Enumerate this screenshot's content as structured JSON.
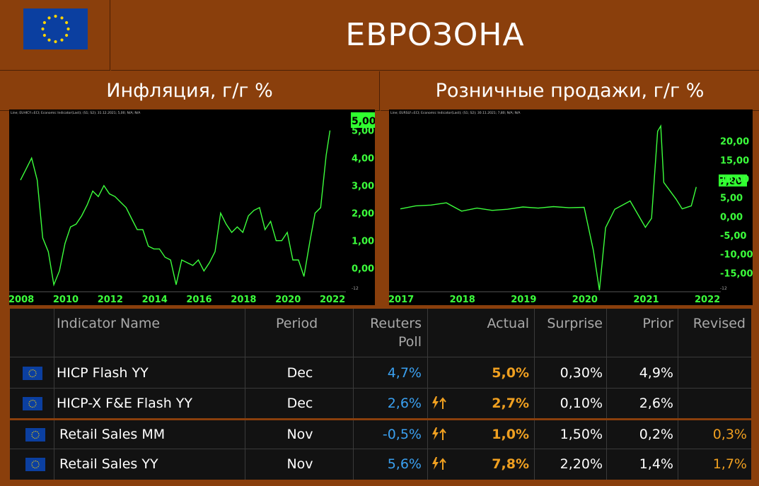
{
  "header": {
    "title": "ЕВРОЗОНА"
  },
  "sections": {
    "left_title": "Инфляция, г/г %",
    "right_title": "Розничные продажи, г/г %"
  },
  "charts": {
    "left": {
      "legend": "Line; EUHICY=ECI; Economic Indicator(Last); (S1; S2); 31.12.2021; 5,00; N/A; N/A",
      "last_label": "5,00",
      "unit_label": "-12"
    },
    "right": {
      "legend": "Line; EURSLY=ECI; Economic Indicator(Last); (S1; S2); 30.11.2021; 7,80; N/A; N/A",
      "last_label": "7,80",
      "unit_label": "-12"
    }
  },
  "chart_data": [
    {
      "type": "line",
      "title": "Инфляция, г/г %",
      "x": [
        "2008",
        "2008.25",
        "2008.5",
        "2008.75",
        "2009",
        "2009.25",
        "2009.5",
        "2009.75",
        "2010",
        "2010.25",
        "2010.5",
        "2010.75",
        "2011",
        "2011.25",
        "2011.5",
        "2011.75",
        "2012",
        "2012.25",
        "2012.5",
        "2012.75",
        "2013",
        "2013.25",
        "2013.5",
        "2013.75",
        "2014",
        "2014.25",
        "2014.5",
        "2014.75",
        "2015",
        "2015.25",
        "2015.5",
        "2015.75",
        "2016",
        "2016.25",
        "2016.5",
        "2016.75",
        "2017",
        "2017.25",
        "2017.5",
        "2017.75",
        "2018",
        "2018.25",
        "2018.5",
        "2018.75",
        "2019",
        "2019.25",
        "2019.5",
        "2019.75",
        "2020",
        "2020.25",
        "2020.5",
        "2020.75",
        "2021",
        "2021.25",
        "2021.5",
        "2021.75",
        "2021.92"
      ],
      "series": [
        {
          "values": [
            3.2,
            3.6,
            4.0,
            3.2,
            1.1,
            0.6,
            -0.6,
            -0.1,
            0.9,
            1.5,
            1.6,
            1.9,
            2.3,
            2.8,
            2.6,
            3.0,
            2.7,
            2.6,
            2.4,
            2.2,
            1.8,
            1.4,
            1.4,
            0.8,
            0.7,
            0.7,
            0.4,
            0.3,
            -0.6,
            0.3,
            0.2,
            0.1,
            0.3,
            -0.1,
            0.2,
            0.6,
            2.0,
            1.6,
            1.3,
            1.5,
            1.3,
            1.9,
            2.1,
            2.2,
            1.4,
            1.7,
            1.0,
            1.0,
            1.3,
            0.3,
            0.3,
            -0.3,
            0.9,
            2.0,
            2.2,
            4.1,
            5.0
          ]
        }
      ],
      "xlabel": "",
      "ylabel": "",
      "xticks": [
        "2008",
        "2010",
        "2012",
        "2014",
        "2016",
        "2018",
        "2020",
        "2022"
      ],
      "yticks": [
        "0,00",
        "1,00",
        "2,00",
        "3,00",
        "4,00",
        "5,00"
      ],
      "ylim": [
        -0.7,
        5.3
      ],
      "grid": false
    },
    {
      "type": "line",
      "title": "Розничные продажи, г/г %",
      "x": [
        "2017",
        "2017.25",
        "2017.5",
        "2017.75",
        "2018",
        "2018.25",
        "2018.5",
        "2018.75",
        "2019",
        "2019.25",
        "2019.5",
        "2019.75",
        "2020",
        "2020.15",
        "2020.25",
        "2020.35",
        "2020.5",
        "2020.75",
        "2021",
        "2021.1",
        "2021.2",
        "2021.25",
        "2021.3",
        "2021.5",
        "2021.6",
        "2021.75",
        "2021.83"
      ],
      "series": [
        {
          "values": [
            2.0,
            2.8,
            3.0,
            3.6,
            1.4,
            2.2,
            1.6,
            1.9,
            2.5,
            2.2,
            2.6,
            2.3,
            2.4,
            -9.0,
            -19.6,
            -3.0,
            1.9,
            4.1,
            -2.9,
            -0.5,
            22.6,
            24.0,
            9.0,
            4.6,
            2.0,
            2.8,
            7.8
          ]
        }
      ],
      "xlabel": "",
      "ylabel": "",
      "xticks": [
        "2017",
        "2018",
        "2019",
        "2020",
        "2021",
        "2022"
      ],
      "yticks": [
        "-15,00",
        "-10,00",
        "-5,00",
        "0,00",
        "5,00",
        "10,00",
        "15,00",
        "20,00"
      ],
      "ylim": [
        -20,
        25
      ],
      "grid": false
    }
  ],
  "table": {
    "headers": {
      "name": "Indicator Name",
      "period": "Period",
      "poll_line1": "Reuters",
      "poll_line2": "Poll",
      "actual": "Actual",
      "surprise": "Surprise",
      "prior": "Prior",
      "revised": "Revised"
    },
    "rows": [
      {
        "name": "HICP Flash YY",
        "period": "Dec",
        "poll": "4,7%",
        "actual": "5,0%",
        "surprise": "0,30%",
        "prior": "4,9%",
        "revised": "",
        "beat": false
      },
      {
        "name": "HICP-X F&E Flash YY",
        "period": "Dec",
        "poll": "2,6%",
        "actual": "2,7%",
        "surprise": "0,10%",
        "prior": "2,6%",
        "revised": "",
        "beat": true
      },
      {
        "name": "Retail Sales MM",
        "period": "Nov",
        "poll": "-0,5%",
        "actual": "1,0%",
        "surprise": "1,50%",
        "prior": "0,2%",
        "revised": "0,3%",
        "beat": true
      },
      {
        "name": "Retail Sales YY",
        "period": "Nov",
        "poll": "5,6%",
        "actual": "7,8%",
        "surprise": "2,20%",
        "prior": "1,4%",
        "revised": "1,7%",
        "beat": true
      }
    ],
    "beat_icon": "lightning-up-arrow-icon"
  },
  "colors": {
    "background": "#8a3f0c",
    "line": "#3cff3c",
    "poll_blue": "#3aa0f0",
    "actual_orange": "#f0a020",
    "flag_blue": "#0b3fa0",
    "star_yellow": "#ffd400"
  }
}
